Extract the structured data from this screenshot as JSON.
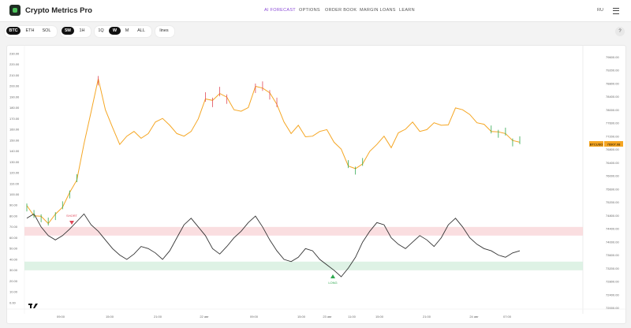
{
  "app": {
    "title": "Crypto Metrics Pro",
    "logo_icon": "chart-logo-icon"
  },
  "nav": [
    {
      "label": "AI FORECAST",
      "active": true
    },
    {
      "label": "OPTIONS",
      "active": false
    },
    {
      "label": "ORDER BOOK",
      "active": false
    },
    {
      "label": "MARGIN LOANS",
      "active": false
    },
    {
      "label": "LEARN",
      "active": false
    }
  ],
  "language": "RU",
  "toolbar": {
    "assets": [
      "BTC",
      "ETH",
      "SOL"
    ],
    "selected_asset": "BTC",
    "intervals": [
      "5M",
      "1H"
    ],
    "selected_interval": "5M",
    "ranges": [
      "1Q",
      "W",
      "M",
      "ALL"
    ],
    "selected_range": "W",
    "lines_label": "lines",
    "help_label": "?"
  },
  "colors": {
    "accent": "#8a49d6",
    "price_line": "#f5a623",
    "oscillator": "#333333",
    "upper_band": "#f9d6d8",
    "lower_band": "#d6efdf",
    "short": "#e04a5a",
    "long": "#2fa84f"
  },
  "chart_data": {
    "type": "line",
    "left_axis": {
      "ticks": [
        "230.00",
        "220.00",
        "210.00",
        "200.00",
        "190.00",
        "180.00",
        "170.00",
        "160.00",
        "150.00",
        "140.00",
        "130.00",
        "120.00",
        "110.00",
        "100.00",
        "90.00",
        "80.00",
        "70.00",
        "60.00",
        "50.00",
        "40.00",
        "30.00",
        "20.00",
        "10.00",
        "0.00"
      ],
      "range": [
        0,
        230
      ]
    },
    "right_axis": {
      "ticks": [
        "79600.00",
        "79200.00",
        "78800.00",
        "78400.00",
        "78000.00",
        "77600.00",
        "77200.00",
        "76800.00",
        "76400.00",
        "76000.00",
        "75600.00",
        "75200.00",
        "74800.00",
        "74400.00",
        "74000.00",
        "73600.00",
        "73200.00",
        "72800.00",
        "72400.00",
        "72000.00"
      ],
      "range": [
        72000,
        79600
      ]
    },
    "x_ticks": [
      "09:00",
      "15:00",
      "21:00",
      "22 авг",
      "09:00",
      "15:00",
      "23 авг",
      "11:00",
      "15:00",
      "21:00",
      "24 авг",
      "07:00"
    ],
    "current_price": {
      "label": "BTCUSD",
      "value": "76907.08"
    },
    "upper_band": [
      62,
      70
    ],
    "lower_band": [
      30,
      38
    ],
    "annotations": [
      {
        "label": "SHORT"
      },
      {
        "label": "LONG"
      }
    ],
    "price_series": [
      88,
      82,
      78,
      75,
      80,
      90,
      100,
      115,
      145,
      178,
      205,
      180,
      160,
      148,
      152,
      160,
      150,
      158,
      165,
      172,
      162,
      158,
      152,
      160,
      168,
      190,
      185,
      195,
      188,
      180,
      175,
      182,
      198,
      200,
      192,
      185,
      165,
      158,
      162,
      155,
      152,
      160,
      158,
      150,
      140,
      128,
      122,
      130,
      138,
      148,
      152,
      145,
      155,
      162,
      165,
      160,
      158,
      168,
      162,
      166,
      178,
      180,
      172,
      168,
      163,
      160,
      156,
      158,
      148,
      150
    ],
    "osc_series": [
      78,
      82,
      70,
      62,
      58,
      62,
      68,
      75,
      82,
      72,
      66,
      58,
      50,
      44,
      40,
      45,
      52,
      50,
      46,
      40,
      48,
      60,
      72,
      78,
      70,
      62,
      50,
      45,
      52,
      60,
      66,
      74,
      80,
      70,
      58,
      48,
      40,
      38,
      42,
      50,
      48,
      40,
      35,
      30,
      24,
      32,
      42,
      56,
      66,
      74,
      72,
      60,
      54,
      50,
      56,
      62,
      58,
      52,
      60,
      72,
      78,
      70,
      60,
      54,
      50,
      48,
      44,
      42,
      46,
      48
    ]
  }
}
